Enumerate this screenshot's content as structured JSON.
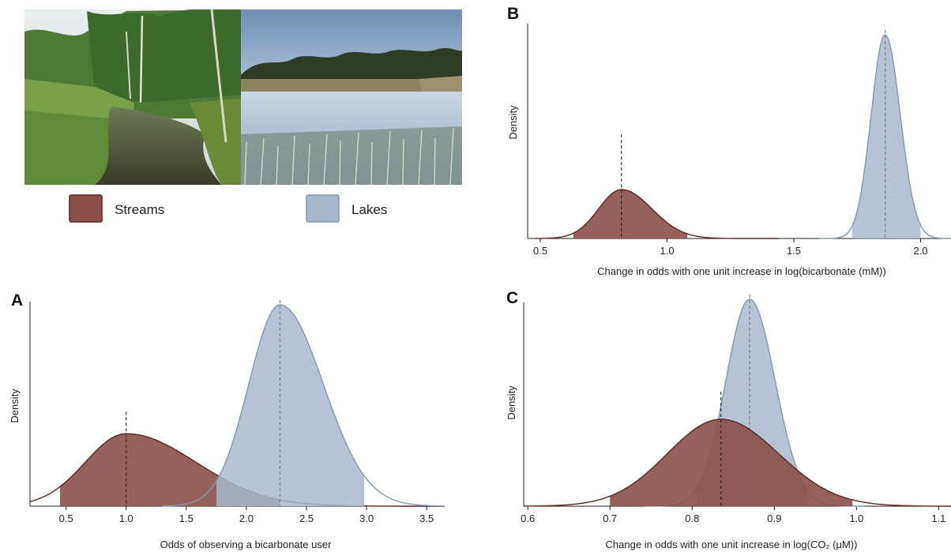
{
  "colors": {
    "streams_fill": "#8b5048",
    "streams_line": "#5c2520",
    "lakes_fill": "#a8b8cc",
    "lakes_line": "#7f98b4",
    "axis": "#222222"
  },
  "photos": {
    "left_description_icon": "stream-photo",
    "right_description_icon": "lake-photo"
  },
  "legend": [
    {
      "label": "Streams",
      "color": "#8b5048",
      "border": "#5c2520"
    },
    {
      "label": "Lakes",
      "color": "#a8b8cc",
      "border": "#7f98b4"
    }
  ],
  "chart_data": [
    {
      "panel": "A",
      "type": "area",
      "xlabel": "Odds of observing a bicarbonate user",
      "ylabel": "Density",
      "xlim": [
        0.2,
        3.65
      ],
      "ticks": [
        "0.5",
        "1.0",
        "1.5",
        "2.0",
        "2.5",
        "3.0",
        "3.5"
      ],
      "tick_values": [
        0.5,
        1.0,
        1.5,
        2.0,
        2.5,
        3.0,
        3.5
      ],
      "series": [
        {
          "name": "Streams",
          "mean": 1.0,
          "peak": 0.36,
          "sd_left": 0.34,
          "sd_right": 0.58,
          "range": [
            0.2,
            3.65
          ],
          "ci": [
            0.45,
            2.28
          ],
          "dashed_at": 1.0
        },
        {
          "name": "Lakes",
          "mean": 2.28,
          "peak": 1.0,
          "sd_left": 0.26,
          "sd_right": 0.36,
          "range": [
            1.3,
            3.65
          ],
          "ci": [
            1.75,
            2.98
          ],
          "dashed_at": 2.28
        }
      ]
    },
    {
      "panel": "B",
      "type": "area",
      "xlabel": "Change in odds with one unit increase in log(bicarbonate (mM))",
      "ylabel": "Density",
      "xlim": [
        0.45,
        2.12
      ],
      "ticks": [
        "0.5",
        "1.0",
        "1.5",
        "2.0"
      ],
      "tick_values": [
        0.5,
        1.0,
        1.5,
        2.0
      ],
      "series": [
        {
          "name": "Streams",
          "mean": 0.82,
          "peak": 0.24,
          "sd_left": 0.09,
          "sd_right": 0.12,
          "range": [
            0.48,
            1.44
          ],
          "ci": [
            0.63,
            1.08
          ],
          "dashed_at": 0.82
        },
        {
          "name": "Lakes",
          "mean": 1.86,
          "peak": 1.0,
          "sd_left": 0.055,
          "sd_right": 0.06,
          "range": [
            1.6,
            2.12
          ],
          "ci": [
            1.73,
            2.0
          ],
          "dashed_at": 1.86
        }
      ]
    },
    {
      "panel": "C",
      "type": "area",
      "xlabel": "Change in odds with one unit increase in log(CO₂ (μM))",
      "ylabel": "Density",
      "xlim": [
        0.595,
        1.115
      ],
      "ticks": [
        "0.6",
        "0.7",
        "0.8",
        "0.9",
        "1.0",
        "1.1"
      ],
      "tick_values": [
        0.6,
        0.7,
        0.8,
        0.9,
        1.0,
        1.1
      ],
      "series": [
        {
          "name": "Lakes",
          "mean": 0.87,
          "peak": 1.0,
          "sd_left": 0.029,
          "sd_right": 0.031,
          "range": [
            0.74,
            1.01
          ],
          "ci": [
            0.805,
            0.94
          ],
          "dashed_at": 0.87
        },
        {
          "name": "Streams",
          "mean": 0.835,
          "peak": 0.42,
          "sd_left": 0.065,
          "sd_right": 0.07,
          "range": [
            0.595,
            1.115
          ],
          "ci": [
            0.7,
            0.995
          ],
          "dashed_at": 0.835
        }
      ]
    }
  ]
}
